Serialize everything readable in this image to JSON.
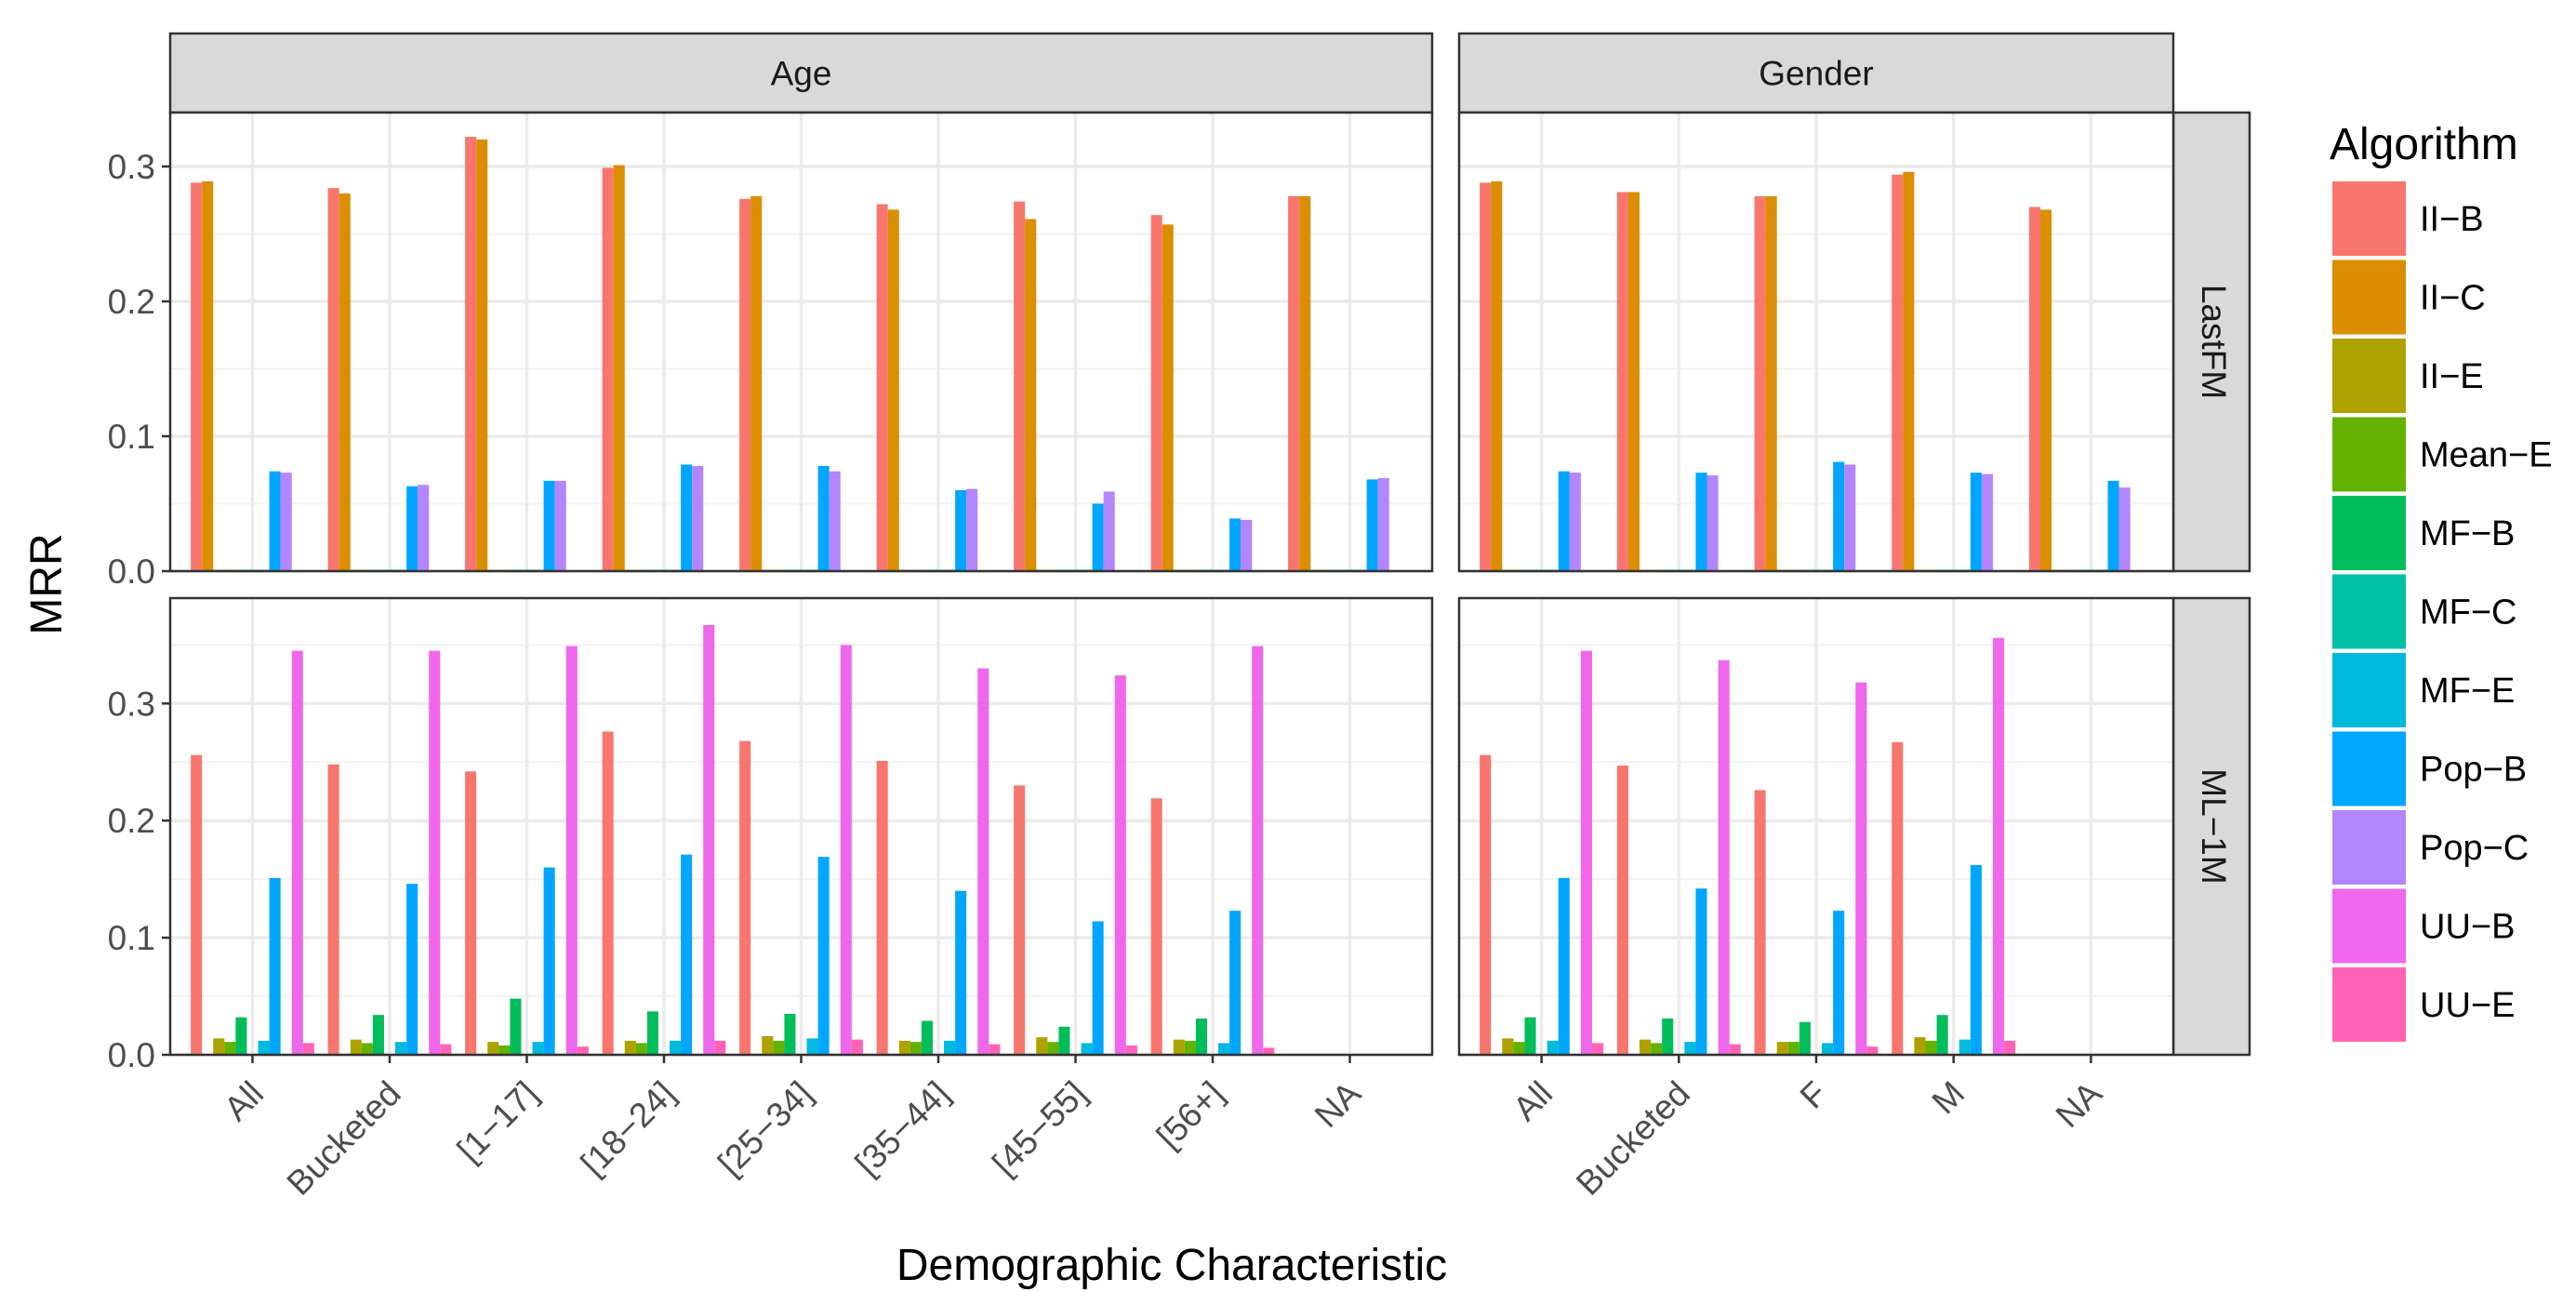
{
  "chart_data": {
    "type": "bar",
    "xlabel": "Demographic Characteristic",
    "ylabel": "MRR",
    "facet_columns": [
      "Age",
      "Gender"
    ],
    "facet_rows": [
      "LastFM",
      "ML−1M"
    ],
    "legend": {
      "title": "Algorithm",
      "placement": "right",
      "entries": [
        "II−B",
        "II−C",
        "II−E",
        "Mean−E",
        "MF−B",
        "MF−C",
        "MF−E",
        "Pop−B",
        "Pop−C",
        "UU−B",
        "UU−E"
      ]
    },
    "colors": {
      "II−B": "#F8766D",
      "II−C": "#DB8E00",
      "II−E": "#AEA200",
      "Mean−E": "#64B200",
      "MF−B": "#00BD5C",
      "MF−C": "#00C1A7",
      "MF−E": "#00BADE",
      "Pop−B": "#00A6FF",
      "Pop−C": "#B385FF",
      "UU−B": "#EF67EB",
      "UU−E": "#FF63B6"
    },
    "grid": true,
    "panels": [
      {
        "row": "LastFM",
        "col": "Age",
        "ylim": [
          0,
          0.34
        ],
        "yticks": [
          0.0,
          0.1,
          0.2,
          0.3
        ],
        "ytick_labels": [
          "0.0",
          "0.1",
          "0.2",
          "0.3"
        ],
        "categories": [
          "All",
          "Bucketed",
          "[1−17]",
          "[18−24]",
          "[25−34]",
          "[35−44]",
          "[45−55]",
          "[56+]",
          "NA"
        ],
        "series": [
          {
            "name": "II−B",
            "values": [
              0.288,
              0.284,
              0.322,
              0.299,
              0.276,
              0.272,
              0.274,
              0.264,
              0.278
            ]
          },
          {
            "name": "II−C",
            "values": [
              0.289,
              0.28,
              0.32,
              0.301,
              0.278,
              0.268,
              0.261,
              0.257,
              0.278
            ]
          },
          {
            "name": "II−E",
            "values": [
              0.001,
              0.001,
              0.001,
              0.001,
              0.001,
              0.001,
              0.001,
              0.001,
              0.001
            ]
          },
          {
            "name": "Mean−E",
            "values": [
              0.001,
              0.001,
              0.001,
              0.001,
              0.001,
              0.001,
              0.001,
              0.001,
              0.001
            ]
          },
          {
            "name": "MF−B",
            "values": [
              0.001,
              0.001,
              0.001,
              0.001,
              0.001,
              0.001,
              0.001,
              0.001,
              0.001
            ]
          },
          {
            "name": "MF−C",
            "values": [
              0.001,
              0.001,
              0.001,
              0.001,
              0.001,
              0.001,
              0.001,
              0.001,
              0.001
            ]
          },
          {
            "name": "MF−E",
            "values": [
              0.001,
              0.001,
              0.001,
              0.001,
              0.001,
              0.001,
              0.001,
              0.001,
              0.001
            ]
          },
          {
            "name": "Pop−B",
            "values": [
              0.074,
              0.063,
              0.067,
              0.079,
              0.078,
              0.06,
              0.05,
              0.039,
              0.068
            ]
          },
          {
            "name": "Pop−C",
            "values": [
              0.073,
              0.064,
              0.067,
              0.078,
              0.074,
              0.061,
              0.059,
              0.038,
              0.069
            ]
          },
          {
            "name": "UU−B",
            "values": [
              0,
              0,
              0,
              0,
              0,
              0,
              0,
              0,
              0
            ]
          },
          {
            "name": "UU−E",
            "values": [
              0,
              0,
              0,
              0,
              0,
              0,
              0,
              0,
              0
            ]
          }
        ]
      },
      {
        "row": "LastFM",
        "col": "Gender",
        "ylim": [
          0,
          0.34
        ],
        "yticks": [
          0.0,
          0.1,
          0.2,
          0.3
        ],
        "ytick_labels": [
          "0.0",
          "0.1",
          "0.2",
          "0.3"
        ],
        "categories": [
          "All",
          "Bucketed",
          "F",
          "M",
          "NA"
        ],
        "series": [
          {
            "name": "II−B",
            "values": [
              0.288,
              0.281,
              0.278,
              0.294,
              0.27
            ]
          },
          {
            "name": "II−C",
            "values": [
              0.289,
              0.281,
              0.278,
              0.296,
              0.268
            ]
          },
          {
            "name": "II−E",
            "values": [
              0.001,
              0.001,
              0.001,
              0.001,
              0.001
            ]
          },
          {
            "name": "Mean−E",
            "values": [
              0.001,
              0.001,
              0.001,
              0.001,
              0.001
            ]
          },
          {
            "name": "MF−B",
            "values": [
              0.001,
              0.001,
              0.001,
              0.001,
              0.001
            ]
          },
          {
            "name": "MF−C",
            "values": [
              0.001,
              0.001,
              0.001,
              0.001,
              0.001
            ]
          },
          {
            "name": "MF−E",
            "values": [
              0.001,
              0.001,
              0.001,
              0.001,
              0.001
            ]
          },
          {
            "name": "Pop−B",
            "values": [
              0.074,
              0.073,
              0.081,
              0.073,
              0.067
            ]
          },
          {
            "name": "Pop−C",
            "values": [
              0.073,
              0.071,
              0.079,
              0.072,
              0.062
            ]
          },
          {
            "name": "UU−B",
            "values": [
              0,
              0,
              0,
              0,
              0
            ]
          },
          {
            "name": "UU−E",
            "values": [
              0,
              0,
              0,
              0,
              0
            ]
          }
        ]
      },
      {
        "row": "ML−1M",
        "col": "Age",
        "ylim": [
          0,
          0.39
        ],
        "yticks": [
          0.0,
          0.1,
          0.2,
          0.3
        ],
        "ytick_labels": [
          "0.0",
          "0.1",
          "0.2",
          "0.3"
        ],
        "categories": [
          "All",
          "Bucketed",
          "[1−17]",
          "[18−24]",
          "[25−34]",
          "[35−44]",
          "[45−55]",
          "[56+]",
          "NA"
        ],
        "series": [
          {
            "name": "II−B",
            "values": [
              0.256,
              0.248,
              0.242,
              0.276,
              0.268,
              0.251,
              0.23,
              0.219,
              0
            ]
          },
          {
            "name": "II−C",
            "values": [
              0,
              0,
              0,
              0,
              0,
              0,
              0,
              0,
              0
            ]
          },
          {
            "name": "II−E",
            "values": [
              0.014,
              0.013,
              0.011,
              0.012,
              0.016,
              0.012,
              0.015,
              0.013,
              0
            ]
          },
          {
            "name": "Mean−E",
            "values": [
              0.011,
              0.01,
              0.008,
              0.01,
              0.012,
              0.011,
              0.011,
              0.012,
              0
            ]
          },
          {
            "name": "MF−B",
            "values": [
              0.032,
              0.034,
              0.048,
              0.037,
              0.035,
              0.029,
              0.024,
              0.031,
              0
            ]
          },
          {
            "name": "MF−C",
            "values": [
              0,
              0,
              0,
              0,
              0,
              0,
              0,
              0,
              0
            ]
          },
          {
            "name": "MF−E",
            "values": [
              0.012,
              0.011,
              0.011,
              0.012,
              0.014,
              0.012,
              0.01,
              0.01,
              0
            ]
          },
          {
            "name": "Pop−B",
            "values": [
              0.151,
              0.146,
              0.16,
              0.171,
              0.169,
              0.14,
              0.114,
              0.123,
              0
            ]
          },
          {
            "name": "Pop−C",
            "values": [
              0,
              0,
              0,
              0,
              0,
              0,
              0,
              0,
              0
            ]
          },
          {
            "name": "UU−B",
            "values": [
              0.345,
              0.345,
              0.349,
              0.367,
              0.35,
              0.33,
              0.324,
              0.349,
              0
            ]
          },
          {
            "name": "UU−E",
            "values": [
              0.01,
              0.009,
              0.007,
              0.012,
              0.013,
              0.009,
              0.008,
              0.006,
              0
            ]
          }
        ]
      },
      {
        "row": "ML−1M",
        "col": "Gender",
        "ylim": [
          0,
          0.39
        ],
        "yticks": [
          0.0,
          0.1,
          0.2,
          0.3
        ],
        "ytick_labels": [
          "0.0",
          "0.1",
          "0.2",
          "0.3"
        ],
        "categories": [
          "All",
          "Bucketed",
          "F",
          "M",
          "NA"
        ],
        "series": [
          {
            "name": "II−B",
            "values": [
              0.256,
              0.247,
              0.226,
              0.267,
              0
            ]
          },
          {
            "name": "II−C",
            "values": [
              0,
              0,
              0,
              0,
              0
            ]
          },
          {
            "name": "II−E",
            "values": [
              0.014,
              0.013,
              0.011,
              0.015,
              0
            ]
          },
          {
            "name": "Mean−E",
            "values": [
              0.011,
              0.01,
              0.011,
              0.012,
              0
            ]
          },
          {
            "name": "MF−B",
            "values": [
              0.032,
              0.031,
              0.028,
              0.034,
              0
            ]
          },
          {
            "name": "MF−C",
            "values": [
              0,
              0,
              0,
              0,
              0
            ]
          },
          {
            "name": "MF−E",
            "values": [
              0.012,
              0.011,
              0.01,
              0.013,
              0
            ]
          },
          {
            "name": "Pop−B",
            "values": [
              0.151,
              0.142,
              0.123,
              0.162,
              0
            ]
          },
          {
            "name": "Pop−C",
            "values": [
              0,
              0,
              0,
              0,
              0
            ]
          },
          {
            "name": "UU−B",
            "values": [
              0.345,
              0.337,
              0.318,
              0.356,
              0
            ]
          },
          {
            "name": "UU−E",
            "values": [
              0.01,
              0.009,
              0.007,
              0.012,
              0
            ]
          }
        ]
      }
    ]
  }
}
